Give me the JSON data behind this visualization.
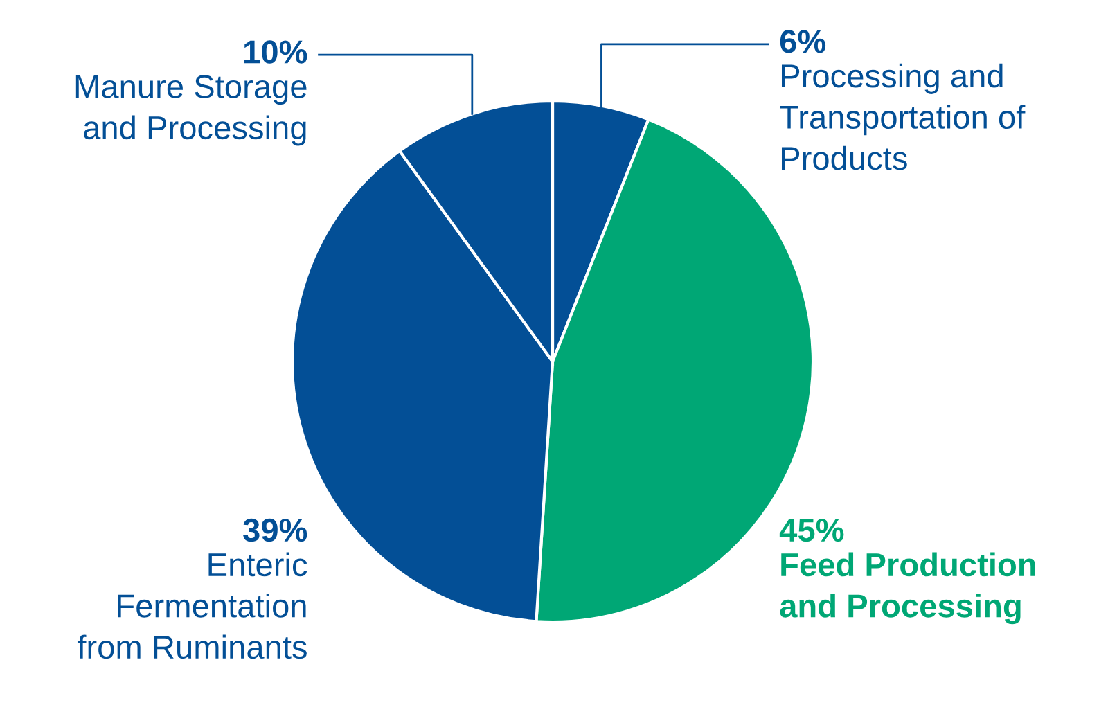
{
  "chart_data": {
    "type": "pie",
    "categories": [
      "Processing and\nTransportation of\nProducts",
      "Feed Production\nand Processing",
      "Enteric\nFermentation\nfrom Ruminants",
      "Manure Storage\nand Processing"
    ],
    "values": [
      6,
      45,
      39,
      10
    ],
    "colors": [
      "#034f96",
      "#00a775",
      "#034f96",
      "#034f96"
    ],
    "value_labels": [
      "6%",
      "45%",
      "39%",
      "10%"
    ],
    "legend": false
  }
}
